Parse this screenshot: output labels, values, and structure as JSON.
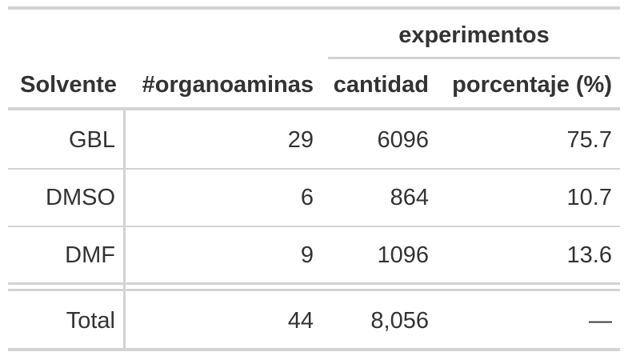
{
  "table": {
    "spanner": "experimentos",
    "columns": [
      "Solvente",
      "#organoaminas",
      "cantidad",
      "porcentaje (%)"
    ],
    "rows": [
      {
        "solvente": "GBL",
        "organoaminas": "29",
        "cantidad": "6096",
        "porcentaje": "75.7"
      },
      {
        "solvente": "DMSO",
        "organoaminas": "6",
        "cantidad": "864",
        "porcentaje": "10.7"
      },
      {
        "solvente": "DMF",
        "organoaminas": "9",
        "cantidad": "1096",
        "porcentaje": "13.6"
      }
    ],
    "total": {
      "label": "Total",
      "organoaminas": "44",
      "cantidad": "8,056",
      "porcentaje": "—"
    }
  }
}
